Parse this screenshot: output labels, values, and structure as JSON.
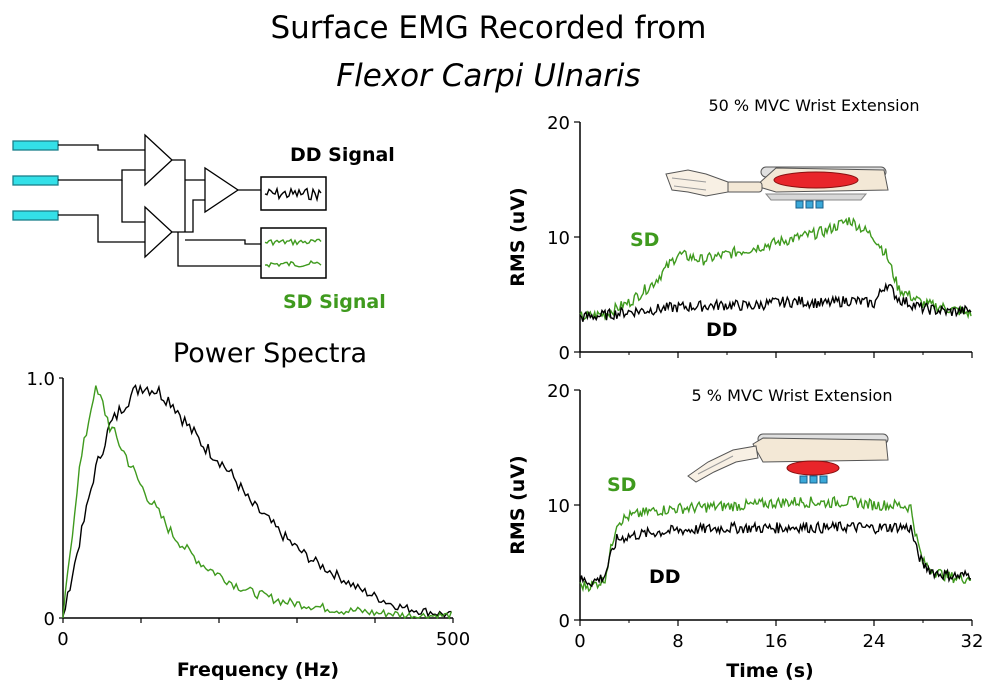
{
  "title": {
    "line1": "Surface EMG Recorded from",
    "line2": "Flexor Carpi Ulnaris"
  },
  "circuit": {
    "dd_label": "DD Signal",
    "sd_label": "SD Signal"
  },
  "colors": {
    "dd": "#000000",
    "sd": "#3f9a1e",
    "electrode": "#33e0e8",
    "muscle": "#e8252a",
    "bone": "#f3e8d6"
  },
  "chart_data": [
    {
      "id": "power_spectra",
      "type": "line",
      "title": "Power Spectra",
      "xlabel": "Frequency (Hz)",
      "ylabel": "",
      "xlim": [
        0,
        500
      ],
      "ylim": [
        0,
        1.0
      ],
      "x_ticks": [
        "0",
        "500"
      ],
      "y_ticks": [
        "0",
        "1.0"
      ],
      "series": [
        {
          "color": "#000000",
          "x": [
            0,
            20,
            40,
            60,
            80,
            100,
            120,
            140,
            160,
            180,
            200,
            220,
            240,
            260,
            280,
            300,
            320,
            340,
            360,
            380,
            400,
            420,
            440,
            460,
            480,
            500
          ],
          "y": [
            0,
            0.3,
            0.6,
            0.8,
            0.9,
            0.97,
            0.95,
            0.9,
            0.8,
            0.72,
            0.66,
            0.58,
            0.48,
            0.42,
            0.35,
            0.29,
            0.24,
            0.2,
            0.16,
            0.12,
            0.09,
            0.06,
            0.04,
            0.03,
            0.02,
            0.01
          ]
        },
        {
          "color": "#3f9a1e",
          "x": [
            0,
            20,
            40,
            50,
            60,
            80,
            100,
            120,
            140,
            160,
            180,
            200,
            220,
            240,
            260,
            280,
            300,
            320,
            340,
            360,
            380,
            400,
            420,
            440,
            460,
            480,
            500
          ],
          "y": [
            0,
            0.6,
            0.95,
            0.9,
            0.8,
            0.68,
            0.55,
            0.45,
            0.35,
            0.28,
            0.22,
            0.18,
            0.14,
            0.11,
            0.09,
            0.07,
            0.06,
            0.05,
            0.04,
            0.03,
            0.03,
            0.02,
            0.02,
            0.01,
            0.01,
            0.01,
            0.01
          ]
        }
      ]
    },
    {
      "id": "mvc50",
      "type": "line",
      "title": "50 % MVC Wrist Extension",
      "xlabel": "",
      "ylabel": "RMS (uV)",
      "xlim": [
        0,
        32
      ],
      "ylim": [
        0,
        20
      ],
      "y_ticks": [
        "0",
        "10",
        "20"
      ],
      "series": [
        {
          "name": "SD",
          "color": "#3f9a1e",
          "x": [
            0,
            2,
            4,
            6,
            8,
            10,
            12,
            14,
            16,
            18,
            20,
            22,
            24,
            25,
            26,
            28,
            30,
            32
          ],
          "y": [
            3,
            3.3,
            4.3,
            6,
            8.5,
            8.0,
            8.5,
            9.0,
            9.5,
            10.0,
            10.5,
            11.5,
            10.0,
            8.5,
            5.5,
            4.2,
            3.8,
            3.3
          ]
        },
        {
          "name": "DD",
          "color": "#000000",
          "x": [
            0,
            2,
            4,
            6,
            8,
            10,
            12,
            14,
            16,
            18,
            20,
            22,
            24,
            25,
            26,
            28,
            30,
            32
          ],
          "y": [
            3,
            3.2,
            3.5,
            3.7,
            3.9,
            4.0,
            4.1,
            4.0,
            4.3,
            4.4,
            4.2,
            4.5,
            4.2,
            6.0,
            4.6,
            3.8,
            3.5,
            3.6
          ]
        }
      ]
    },
    {
      "id": "mvc5",
      "type": "line",
      "title": "5 % MVC Wrist Extension",
      "xlabel": "Time (s)",
      "ylabel": "RMS (uV)",
      "xlim": [
        0,
        32
      ],
      "ylim": [
        0,
        20
      ],
      "x_ticks": [
        "0",
        "8",
        "16",
        "24",
        "32"
      ],
      "y_ticks": [
        "0",
        "10",
        "20"
      ],
      "series": [
        {
          "name": "SD",
          "color": "#3f9a1e",
          "x": [
            0,
            1,
            2,
            2.5,
            3,
            4,
            6,
            8,
            10,
            12,
            14,
            16,
            18,
            20,
            22,
            24,
            26,
            27,
            27.5,
            28,
            29,
            30,
            31,
            32
          ],
          "y": [
            3.0,
            3.0,
            3.5,
            6.0,
            8.5,
            9.0,
            9.5,
            9.7,
            9.8,
            9.9,
            10.0,
            10.2,
            10.3,
            10.2,
            10.3,
            10.0,
            10.0,
            9.8,
            7.0,
            5.0,
            4.2,
            3.8,
            3.6,
            3.7
          ]
        },
        {
          "name": "DD",
          "color": "#000000",
          "x": [
            0,
            1,
            2,
            2.5,
            3,
            4,
            6,
            8,
            10,
            12,
            14,
            16,
            18,
            20,
            22,
            24,
            26,
            27,
            27.5,
            28,
            29,
            30,
            31,
            32
          ],
          "y": [
            3.5,
            3.3,
            3.8,
            5.5,
            7.0,
            7.3,
            7.6,
            7.8,
            7.9,
            8.0,
            8.0,
            8.0,
            8.1,
            8.0,
            8.1,
            8.0,
            8.1,
            8.0,
            6.0,
            4.8,
            4.1,
            3.9,
            3.8,
            4.0
          ]
        }
      ]
    }
  ]
}
